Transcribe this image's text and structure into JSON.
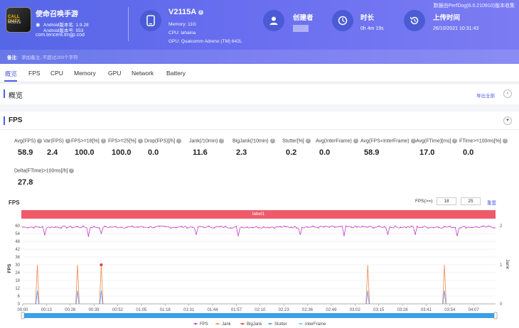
{
  "banner": {
    "top_note": "数据由PerfDog(6.0.210910)版本收集",
    "app": {
      "icon_text": "CALL DUTY",
      "icon_sub": "MOBILE",
      "name": "使命召唤手游",
      "android_version_name": "Android版本名: 1.9.28",
      "android_version_code": "Android版本号: 553",
      "package": "com.tencent.tmgp.cod"
    },
    "device": {
      "title": "V2115A",
      "memory": "Memory: 11G",
      "cpu": "CPU: lahaina",
      "gpu": "GPU: Qualcomm Adreno (TM) 642L"
    },
    "creator": {
      "label": "创建者"
    },
    "duration": {
      "label": "时长",
      "value": "0h 4m 19s"
    },
    "upload": {
      "label": "上传时间",
      "value": "26/10/2021 10:31:43"
    },
    "note": {
      "label": "备注:",
      "placeholder": "添加备注, 不超过200个字符"
    }
  },
  "tabs": [
    {
      "label": "概览"
    },
    {
      "label": "FPS"
    },
    {
      "label": "CPU"
    },
    {
      "label": "Memory"
    },
    {
      "label": "GPU"
    },
    {
      "label": "Network"
    },
    {
      "label": "Battery"
    }
  ],
  "overview": {
    "title": "概览",
    "export_label": "导出全部"
  },
  "fps_section": {
    "title": "FPS",
    "metrics": [
      {
        "label": "Avg(FPS)",
        "value": "58.9"
      },
      {
        "label": "Var(FPS)",
        "value": "2.4"
      },
      {
        "label": "FPS>=18[%]",
        "value": "100.0"
      },
      {
        "label": "FPS>=25[%]",
        "value": "100.0"
      },
      {
        "label": "Drop(FPS)[/h]",
        "value": "0.0"
      },
      {
        "label": "Jank(/10min)",
        "value": "11.6"
      },
      {
        "label": "BigJank(/10min)",
        "value": "2.3"
      },
      {
        "label": "Stutter[%]",
        "value": "0.2"
      },
      {
        "label": "Avg(InterFrame)",
        "value": "0.0"
      },
      {
        "label": "Avg(FPS+InterFrame)",
        "value": "58.9"
      },
      {
        "label": "Avg(FTime)[ms]",
        "value": "17.0"
      },
      {
        "label": "FTime>=100ms[%]",
        "value": "0.0"
      },
      {
        "label": "Delta(FTime)>100ms[/h]",
        "value": "27.8"
      }
    ],
    "filter": {
      "label": "FPS(>=)",
      "value1": "18",
      "value2": "25",
      "reset_label": "重置"
    }
  },
  "chart_data": {
    "type": "line",
    "title": "FPS",
    "label_bar": "label1",
    "ylabel": "FPS",
    "ylabel_right": "Jank",
    "ylim": [
      0,
      60
    ],
    "y_ticks": [
      0,
      6,
      12,
      18,
      24,
      30,
      36,
      42,
      48,
      54,
      60
    ],
    "y2lim": [
      0,
      2
    ],
    "y2_ticks": [
      0,
      1,
      2
    ],
    "x_ticks": [
      "00:00",
      "00:13",
      "00:26",
      "00:39",
      "00:52",
      "01:05",
      "01:18",
      "01:31",
      "01:44",
      "01:57",
      "02:10",
      "02:23",
      "02:36",
      "02:49",
      "03:02",
      "03:15",
      "03:28",
      "03:41",
      "03:54",
      "04:07"
    ],
    "x_range_seconds": [
      0,
      259
    ],
    "series": [
      {
        "name": "FPS",
        "color": "#c43bc4",
        "base": 59
      },
      {
        "name": "Jank",
        "color": "#f08a4b",
        "spikes_seconds": [
          8,
          30,
          43,
          189,
          231
        ],
        "spike_value": 1
      },
      {
        "name": "BigJank",
        "color": "#e23b3b",
        "spikes_seconds": [
          43
        ],
        "spike_value": 1
      },
      {
        "name": "Stutter",
        "color": "#5b8ff9"
      },
      {
        "name": "InterFrame",
        "color": "#7ec4e6"
      }
    ]
  }
}
